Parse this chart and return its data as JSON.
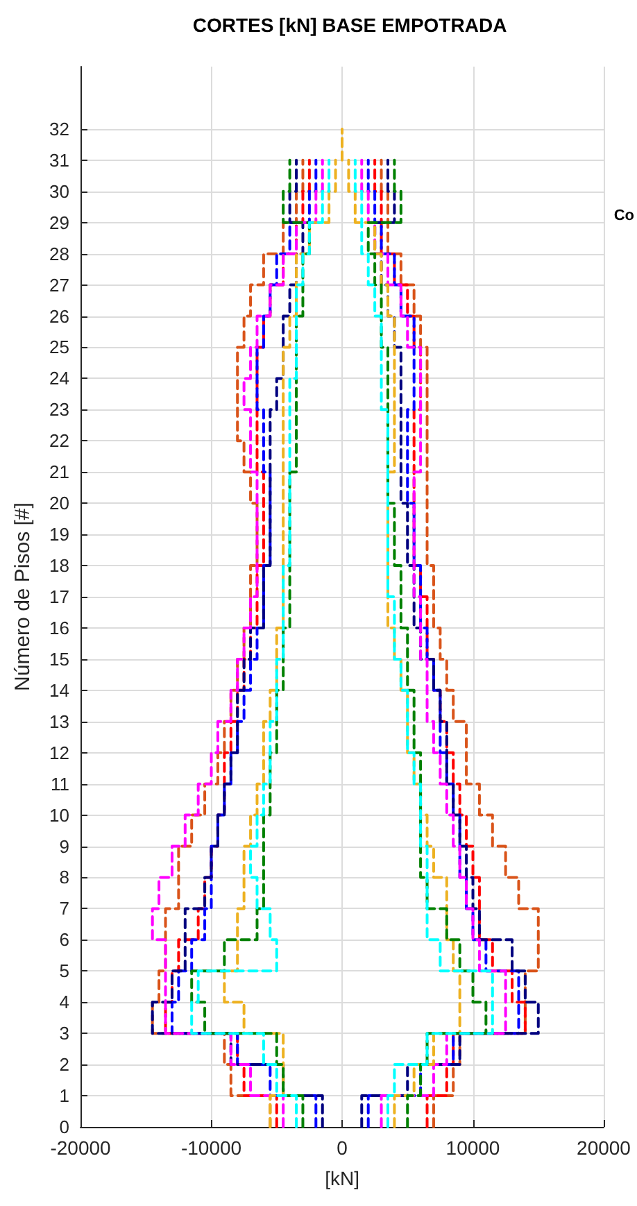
{
  "chart_data": {
    "type": "step",
    "title": "CORTES [kN] BASE EMPOTRADA",
    "xlabel": "[kN]",
    "ylabel": "Número de Pisos [#]",
    "annotations": [
      "Co"
    ],
    "xlim": [
      -20000,
      20000
    ],
    "xticks": [
      -20000,
      -10000,
      0,
      10000,
      20000
    ],
    "ylim": [
      0,
      34
    ],
    "yticks": [
      0,
      1,
      2,
      3,
      4,
      5,
      6,
      7,
      8,
      9,
      10,
      11,
      12,
      13,
      14,
      15,
      16,
      17,
      18,
      19,
      20,
      21,
      22,
      23,
      24,
      25,
      26,
      27,
      28,
      29,
      30,
      31,
      32
    ],
    "grid": true,
    "marker": "none",
    "line_style": "dashed",
    "series": [
      {
        "color": "#d95319",
        "x": [
          7000,
          8500,
          9000,
          14000,
          14000,
          15000,
          15000,
          13500,
          12500,
          11500,
          10500,
          9500,
          9500,
          8500,
          8000,
          7500,
          7000,
          7000,
          6500,
          6500,
          6500,
          6500,
          6500,
          6500,
          6500,
          6000,
          5500,
          4500,
          3500,
          3500,
          3000,
          3000
        ],
        "values": [
          0,
          1,
          2,
          3,
          4,
          5,
          6,
          7,
          8,
          9,
          10,
          11,
          12,
          13,
          14,
          15,
          16,
          17,
          18,
          19,
          20,
          21,
          22,
          23,
          24,
          25,
          26,
          27,
          28,
          29,
          30,
          31
        ]
      },
      {
        "color": "#d95319",
        "x": [
          -5500,
          -8500,
          -9000,
          -14500,
          -14000,
          -13500,
          -13500,
          -12500,
          -12500,
          -11500,
          -10500,
          -9500,
          -9000,
          -8500,
          -8000,
          -7500,
          -7000,
          -7000,
          -6500,
          -6500,
          -7000,
          -7500,
          -8000,
          -8000,
          -8000,
          -7500,
          -7000,
          -6000,
          -4500,
          -3500,
          -3000,
          -3000
        ],
        "values": [
          0,
          1,
          2,
          3,
          4,
          5,
          6,
          7,
          8,
          9,
          10,
          11,
          12,
          13,
          14,
          15,
          16,
          17,
          18,
          19,
          20,
          21,
          22,
          23,
          24,
          25,
          26,
          27,
          28,
          29,
          30,
          31
        ]
      },
      {
        "color": "#ff0000",
        "x": [
          6500,
          8000,
          8500,
          14000,
          13000,
          11500,
          10500,
          10500,
          10000,
          9500,
          9000,
          8500,
          8000,
          7500,
          7000,
          6500,
          6500,
          6000,
          5500,
          5500,
          5500,
          5500,
          5500,
          6000,
          6000,
          5500,
          5000,
          4000,
          3000,
          3000,
          2500,
          2500
        ],
        "values": [
          0,
          1,
          2,
          3,
          4,
          5,
          6,
          7,
          8,
          9,
          10,
          11,
          12,
          13,
          14,
          15,
          16,
          17,
          18,
          19,
          20,
          21,
          22,
          23,
          24,
          25,
          26,
          27,
          28,
          29,
          30,
          31
        ]
      },
      {
        "color": "#ff0000",
        "x": [
          -5000,
          -7500,
          -8000,
          -13500,
          -13000,
          -12500,
          -11000,
          -10500,
          -10000,
          -9500,
          -9000,
          -9000,
          -8500,
          -8000,
          -7500,
          -7000,
          -6500,
          -6500,
          -6000,
          -6000,
          -6000,
          -6500,
          -6500,
          -6500,
          -6500,
          -6000,
          -5500,
          -4500,
          -3500,
          -3000,
          -2500,
          -2500
        ],
        "values": [
          0,
          1,
          2,
          3,
          4,
          5,
          6,
          7,
          8,
          9,
          10,
          11,
          12,
          13,
          14,
          15,
          16,
          17,
          18,
          19,
          20,
          21,
          22,
          23,
          24,
          25,
          26,
          27,
          28,
          29,
          30,
          31
        ]
      },
      {
        "color": "#0000ff",
        "x": [
          2000,
          6000,
          8500,
          13500,
          13500,
          11000,
          10000,
          9500,
          9000,
          9000,
          8500,
          8000,
          7500,
          7500,
          7000,
          6500,
          6000,
          6000,
          5500,
          5500,
          5000,
          5000,
          5000,
          5500,
          5500,
          5500,
          4500,
          4000,
          3000,
          2500,
          2000,
          2000
        ],
        "values": [
          0,
          1,
          2,
          3,
          4,
          5,
          6,
          7,
          8,
          9,
          10,
          11,
          12,
          13,
          14,
          15,
          16,
          17,
          18,
          19,
          20,
          21,
          22,
          23,
          24,
          25,
          26,
          27,
          28,
          29,
          30,
          31
        ]
      },
      {
        "color": "#0000ff",
        "x": [
          -2000,
          -5500,
          -8000,
          -13000,
          -12500,
          -11500,
          -10500,
          -10000,
          -10000,
          -9500,
          -9000,
          -8500,
          -8000,
          -7500,
          -7000,
          -6500,
          -6000,
          -6000,
          -5500,
          -5500,
          -5500,
          -6000,
          -6000,
          -6500,
          -6500,
          -6000,
          -5500,
          -5000,
          -4000,
          -2500,
          -2000,
          -2000
        ],
        "values": [
          0,
          1,
          2,
          3,
          4,
          5,
          6,
          7,
          8,
          9,
          10,
          11,
          12,
          13,
          14,
          15,
          16,
          17,
          18,
          19,
          20,
          21,
          22,
          23,
          24,
          25,
          26,
          27,
          28,
          29,
          30,
          31
        ]
      },
      {
        "color": "#00007f",
        "x": [
          1500,
          5000,
          9000,
          15000,
          14000,
          13000,
          10500,
          10000,
          9500,
          9000,
          8500,
          8000,
          8000,
          7500,
          7000,
          6000,
          5500,
          5500,
          5000,
          5000,
          4500,
          4500,
          4500,
          4500,
          4500,
          4000,
          3500,
          3000,
          2500,
          4000,
          3500,
          3500
        ],
        "values": [
          0,
          1,
          2,
          3,
          4,
          5,
          6,
          7,
          8,
          9,
          10,
          11,
          12,
          13,
          14,
          15,
          16,
          17,
          18,
          19,
          20,
          21,
          22,
          23,
          24,
          25,
          26,
          27,
          28,
          29,
          30,
          31
        ]
      },
      {
        "color": "#00007f",
        "x": [
          -1500,
          -4500,
          -8500,
          -14500,
          -13000,
          -12000,
          -12000,
          -10500,
          -10000,
          -9500,
          -9000,
          -8500,
          -8000,
          -8000,
          -7500,
          -7000,
          -6000,
          -6000,
          -5500,
          -5500,
          -5500,
          -5500,
          -5500,
          -5000,
          -4500,
          -4500,
          -4000,
          -3500,
          -3000,
          -4000,
          -3500,
          -3500
        ],
        "values": [
          0,
          1,
          2,
          3,
          4,
          5,
          6,
          7,
          8,
          9,
          10,
          11,
          12,
          13,
          14,
          15,
          16,
          17,
          18,
          19,
          20,
          21,
          22,
          23,
          24,
          25,
          26,
          27,
          28,
          29,
          30,
          31
        ]
      },
      {
        "color": "#ff00ff",
        "x": [
          3000,
          7000,
          8000,
          12500,
          12500,
          10500,
          10000,
          9500,
          9000,
          8500,
          8000,
          7500,
          7000,
          6500,
          6500,
          6000,
          6000,
          5500,
          5500,
          5500,
          5500,
          6000,
          6000,
          6000,
          6000,
          5000,
          4500,
          3500,
          2500,
          2000,
          1500,
          1500
        ],
        "values": [
          0,
          1,
          2,
          3,
          4,
          5,
          6,
          7,
          8,
          9,
          10,
          11,
          12,
          13,
          14,
          15,
          16,
          17,
          18,
          19,
          20,
          21,
          22,
          23,
          24,
          25,
          26,
          27,
          28,
          29,
          30,
          31
        ]
      },
      {
        "color": "#ff00ff",
        "x": [
          -4500,
          -7000,
          -8500,
          -13500,
          -13500,
          -13500,
          -14500,
          -14000,
          -13000,
          -12000,
          -11000,
          -10000,
          -9500,
          -8500,
          -8000,
          -7500,
          -7000,
          -6500,
          -6500,
          -6500,
          -6500,
          -7000,
          -7000,
          -7500,
          -7000,
          -6500,
          -5500,
          -4500,
          -3500,
          -2000,
          -1500,
          -1500
        ],
        "values": [
          0,
          1,
          2,
          3,
          4,
          5,
          6,
          7,
          8,
          9,
          10,
          11,
          12,
          13,
          14,
          15,
          16,
          17,
          18,
          19,
          20,
          21,
          22,
          23,
          24,
          25,
          26,
          27,
          28,
          29,
          30,
          31
        ]
      },
      {
        "color": "#edb120",
        "x": [
          4000,
          5500,
          7000,
          9000,
          9000,
          8500,
          8000,
          8000,
          7000,
          6500,
          6000,
          5500,
          5000,
          5000,
          4500,
          4000,
          3500,
          3500,
          3500,
          3500,
          3500,
          4000,
          4000,
          4000,
          4000,
          4000,
          3500,
          3000,
          2500,
          1000,
          500,
          500
        ],
        "values": [
          0,
          1,
          2,
          3,
          4,
          5,
          6,
          7,
          8,
          9,
          10,
          11,
          12,
          13,
          14,
          15,
          16,
          17,
          18,
          19,
          20,
          21,
          22,
          23,
          24,
          25,
          26,
          27,
          28,
          29,
          30,
          31
        ]
      },
      {
        "color": "#edb120",
        "x": [
          -5500,
          -4500,
          -4500,
          -7500,
          -9000,
          -8000,
          -8000,
          -7500,
          -7500,
          -7000,
          -6500,
          -6000,
          -6000,
          -5500,
          -5000,
          -5000,
          -4500,
          -4500,
          -4500,
          -4500,
          -4500,
          -4500,
          -4500,
          -4500,
          -4500,
          -4000,
          -3500,
          -3500,
          -2500,
          -1000,
          -500,
          -500
        ],
        "values": [
          0,
          1,
          2,
          3,
          4,
          5,
          6,
          7,
          8,
          9,
          10,
          11,
          12,
          13,
          14,
          15,
          16,
          17,
          18,
          19,
          20,
          21,
          22,
          23,
          24,
          25,
          26,
          27,
          28,
          29,
          30,
          31
        ]
      },
      {
        "color": "#008000",
        "x": [
          5000,
          6000,
          6500,
          11000,
          10000,
          9000,
          8000,
          6500,
          6000,
          6000,
          6000,
          6000,
          5500,
          5500,
          5000,
          5000,
          4500,
          4500,
          4000,
          4000,
          3500,
          3500,
          3500,
          3500,
          3500,
          3000,
          3000,
          2500,
          2000,
          4500,
          4000,
          4000
        ],
        "values": [
          0,
          1,
          2,
          3,
          4,
          5,
          6,
          7,
          8,
          9,
          10,
          11,
          12,
          13,
          14,
          15,
          16,
          17,
          18,
          19,
          20,
          21,
          22,
          23,
          24,
          25,
          26,
          27,
          28,
          29,
          30,
          31
        ]
      },
      {
        "color": "#008000",
        "x": [
          -3000,
          -4500,
          -5000,
          -10500,
          -11500,
          -9000,
          -6500,
          -6000,
          -6000,
          -6000,
          -5500,
          -5500,
          -5000,
          -5000,
          -4500,
          -4500,
          -4000,
          -4000,
          -4000,
          -4000,
          -4000,
          -3500,
          -3500,
          -3500,
          -3500,
          -3500,
          -3000,
          -3000,
          -2500,
          -4500,
          -4000,
          -4000
        ],
        "values": [
          0,
          1,
          2,
          3,
          4,
          5,
          6,
          7,
          8,
          9,
          10,
          11,
          12,
          13,
          14,
          15,
          16,
          17,
          18,
          19,
          20,
          21,
          22,
          23,
          24,
          25,
          26,
          27,
          28,
          29,
          30,
          31
        ]
      },
      {
        "color": "#00ffff",
        "x": [
          3500,
          4000,
          6500,
          11500,
          11500,
          7500,
          6500,
          6500,
          6500,
          6000,
          6000,
          5500,
          5000,
          5000,
          4500,
          4000,
          4000,
          3500,
          3500,
          3500,
          3500,
          3500,
          3500,
          3000,
          3000,
          3000,
          2500,
          2000,
          1500,
          1500,
          1000,
          1000
        ],
        "values": [
          0,
          1,
          2,
          3,
          4,
          5,
          6,
          7,
          8,
          9,
          10,
          11,
          12,
          13,
          14,
          15,
          16,
          17,
          18,
          19,
          20,
          21,
          22,
          23,
          24,
          25,
          26,
          27,
          28,
          29,
          30,
          31
        ]
      },
      {
        "color": "#00ffff",
        "x": [
          -3500,
          -5000,
          -6000,
          -11500,
          -11000,
          -5000,
          -5500,
          -6500,
          -7000,
          -6500,
          -6000,
          -5500,
          -5500,
          -5000,
          -5000,
          -4500,
          -4500,
          -4500,
          -4000,
          -4000,
          -4000,
          -4000,
          -4000,
          -4000,
          -3500,
          -3500,
          -3500,
          -3000,
          -2500,
          -1500,
          -1000,
          -1000
        ],
        "values": [
          0,
          1,
          2,
          3,
          4,
          5,
          6,
          7,
          8,
          9,
          10,
          11,
          12,
          13,
          14,
          15,
          16,
          17,
          18,
          19,
          20,
          21,
          22,
          23,
          24,
          25,
          26,
          27,
          28,
          29,
          30,
          31
        ]
      },
      {
        "type": "line",
        "color": "#edb120",
        "x": [
          0,
          0
        ],
        "values": [
          31,
          32
        ]
      }
    ]
  }
}
